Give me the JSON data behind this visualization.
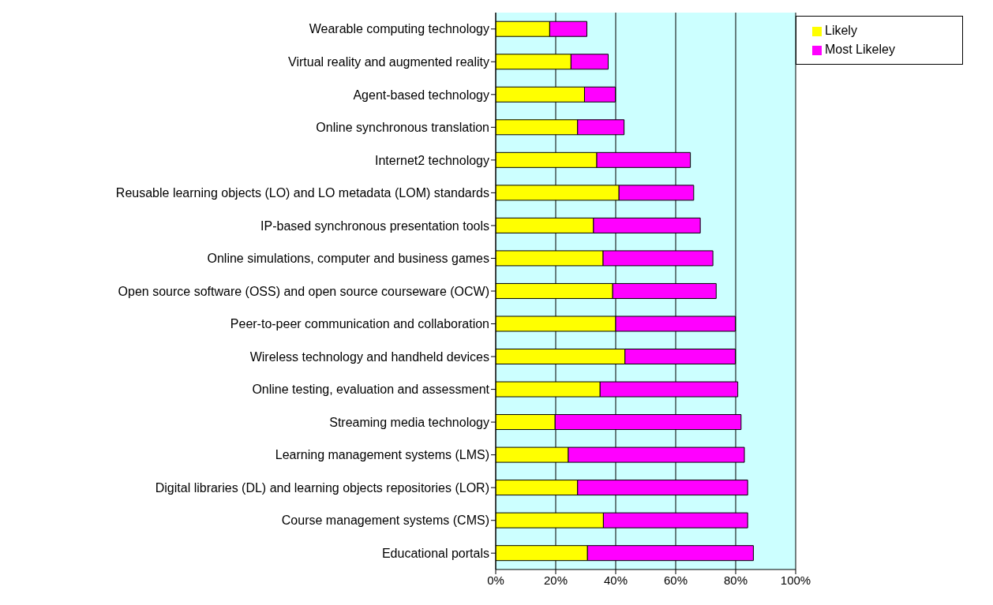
{
  "chart_data": {
    "type": "bar",
    "orientation": "horizontal",
    "stacked": true,
    "categories": [
      "Wearable computing technology",
      "Virtual reality and augmented reality",
      "Agent-based technology",
      "Online synchronous translation",
      "Internet2 technology",
      "Reusable learning objects (LO) and LO metadata (LOM) standards",
      "IP-based synchronous presentation tools",
      "Online simulations, computer and business games",
      "Open source software (OSS) and open source courseware (OCW)",
      "Peer-to-peer communication and collaboration",
      "Wireless technology and handheld devices",
      "Online testing, evaluation and assessment",
      "Streaming media technology",
      "Learning management systems (LMS)",
      "Digital libraries (DL) and learning objects repositories (LOR)",
      "Course management systems (CMS)",
      "Educational portals"
    ],
    "series": [
      {
        "name": "Likely",
        "color": "#ffff00",
        "values": [
          18.0,
          25.1,
          29.6,
          27.3,
          33.7,
          41.1,
          32.6,
          35.8,
          39.0,
          40.0,
          43.1,
          34.8,
          19.8,
          24.2,
          27.3,
          35.9,
          30.6
        ]
      },
      {
        "name": "Most Likeley",
        "color": "#ff00ff",
        "values": [
          12.4,
          12.4,
          10.3,
          15.5,
          31.2,
          24.9,
          35.6,
          36.6,
          34.5,
          39.9,
          36.8,
          45.9,
          62.0,
          58.7,
          56.7,
          48.1,
          55.3
        ]
      }
    ],
    "xlim": [
      0,
      100
    ],
    "xticks": [
      {
        "value": 0,
        "label": "0%"
      },
      {
        "value": 20,
        "label": "20%"
      },
      {
        "value": 40,
        "label": "40%"
      },
      {
        "value": 60,
        "label": "60%"
      },
      {
        "value": 80,
        "label": "80%"
      },
      {
        "value": 100,
        "label": "100%"
      }
    ],
    "grid": "x",
    "legend": "top right"
  }
}
